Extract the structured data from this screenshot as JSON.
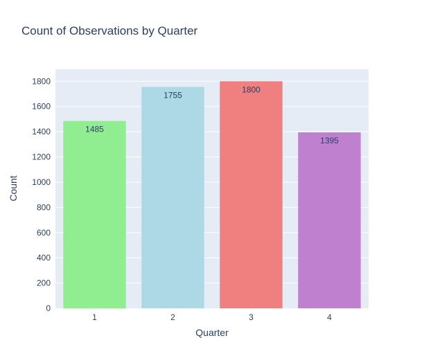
{
  "chart_data": {
    "type": "bar",
    "title": "Count of Observations by Quarter",
    "xlabel": "Quarter",
    "ylabel": "Count",
    "categories": [
      "1",
      "2",
      "3",
      "4"
    ],
    "values": [
      1485,
      1755,
      1800,
      1395
    ],
    "bar_labels": [
      "1485",
      "1755",
      "1800",
      "1395"
    ],
    "colors": [
      "#90ee90",
      "#add8e6",
      "#f08080",
      "#bf80d0"
    ],
    "ylim": [
      0,
      1895
    ],
    "yticks": [
      0,
      200,
      400,
      600,
      800,
      1000,
      1200,
      1400,
      1600,
      1800
    ],
    "ytick_labels": [
      "0",
      "200",
      "400",
      "600",
      "800",
      "1000",
      "1200",
      "1400",
      "1600",
      "1800"
    ],
    "grid": true,
    "plot_background": "#e5ecf6",
    "gridline_color": "#ffffff",
    "text_color": "#2a3f5f"
  }
}
